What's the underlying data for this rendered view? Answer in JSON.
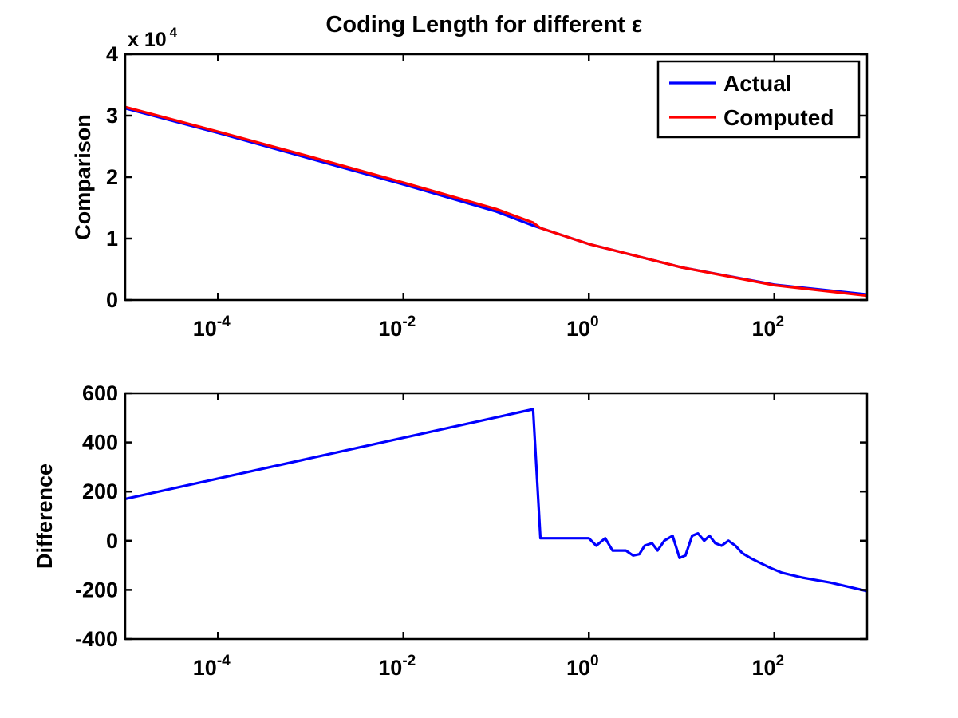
{
  "figure": {
    "title": "Coding Length for different ε",
    "exponent_label_base": "x 10",
    "exponent_label_power": "4"
  },
  "chart_data": [
    {
      "type": "line",
      "title": "Coding Length for different ε",
      "xlabel": "",
      "ylabel": "Comparison",
      "xscale": "log",
      "xlim": [
        1e-05,
        1000
      ],
      "ylim": [
        0,
        40000
      ],
      "y_multiplier_label": "x 10^4",
      "x_ticks": [
        0.0001,
        0.01,
        1,
        100
      ],
      "x_tick_labels": [
        {
          "base": "10",
          "exp": "-4"
        },
        {
          "base": "10",
          "exp": "-2"
        },
        {
          "base": "10",
          "exp": "0"
        },
        {
          "base": "10",
          "exp": "2"
        }
      ],
      "y_ticks": [
        0,
        10000,
        20000,
        30000,
        40000
      ],
      "y_tick_labels": [
        "0",
        "1",
        "2",
        "3",
        "4"
      ],
      "grid": false,
      "legend_position": "top-right",
      "colors": {
        "Actual": "#0000ff",
        "Computed": "#ff0000"
      },
      "series": [
        {
          "name": "Actual",
          "x": [
            1e-05,
            0.0001,
            0.001,
            0.01,
            0.1,
            0.25,
            0.3,
            1,
            10,
            100,
            1000
          ],
          "y": [
            31200,
            27200,
            23000,
            18800,
            14400,
            12100,
            11700,
            9100,
            5300,
            2500,
            900
          ]
        },
        {
          "name": "Computed",
          "x": [
            1e-05,
            0.0001,
            0.001,
            0.01,
            0.1,
            0.25,
            0.3,
            1,
            10,
            100,
            1000
          ],
          "y": [
            31400,
            27400,
            23300,
            19100,
            14800,
            12600,
            11700,
            9100,
            5300,
            2400,
            700
          ]
        }
      ]
    },
    {
      "type": "line",
      "title": "",
      "xlabel": "",
      "ylabel": "Difference",
      "xscale": "log",
      "xlim": [
        1e-05,
        1000
      ],
      "ylim": [
        -400,
        600
      ],
      "x_ticks": [
        0.0001,
        0.01,
        1,
        100
      ],
      "x_tick_labels": [
        {
          "base": "10",
          "exp": "-4"
        },
        {
          "base": "10",
          "exp": "-2"
        },
        {
          "base": "10",
          "exp": "0"
        },
        {
          "base": "10",
          "exp": "2"
        }
      ],
      "y_ticks": [
        -400,
        -200,
        0,
        200,
        400,
        600
      ],
      "y_tick_labels": [
        "-400",
        "-200",
        "0",
        "200",
        "400",
        "600"
      ],
      "grid": false,
      "colors": {
        "line": "#0000ff"
      },
      "series": [
        {
          "x": [
            1e-05,
            0.25,
            0.3,
            1.0,
            1.2,
            1.5,
            1.8,
            2.5,
            3.0,
            3.5,
            4.0,
            4.8,
            5.5,
            6.5,
            8.0,
            9.5,
            11.0,
            13.0,
            15.0,
            17.5,
            20.0,
            23.0,
            27.0,
            32.0,
            38.0,
            45.0,
            55.0,
            70.0,
            90.0,
            120.0,
            200.0,
            400.0,
            1000.0
          ],
          "y": [
            170,
            535,
            10,
            10,
            -20,
            10,
            -40,
            -40,
            -60,
            -55,
            -20,
            -10,
            -40,
            0,
            20,
            -70,
            -60,
            20,
            30,
            0,
            20,
            -10,
            -20,
            0,
            -20,
            -50,
            -70,
            -90,
            -110,
            -130,
            -150,
            -170,
            -205
          ]
        }
      ]
    }
  ]
}
